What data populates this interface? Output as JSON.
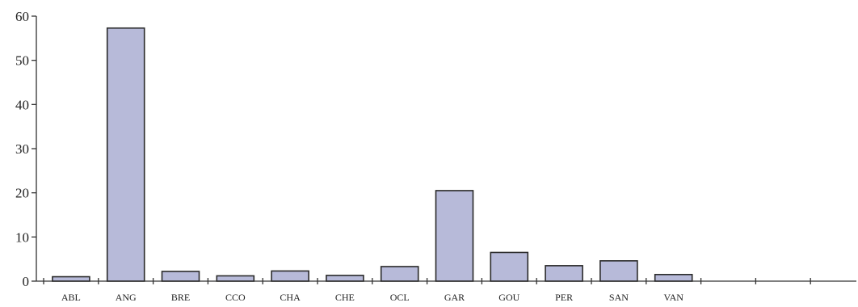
{
  "chart_data": {
    "type": "bar",
    "title": "",
    "xlabel": "",
    "ylabel": "",
    "categories": [
      "ABL",
      "ANG",
      "BRE",
      "CCO",
      "CHA",
      "CHE",
      "OCL",
      "GAR",
      "GOU",
      "PER",
      "SAN",
      "VAN"
    ],
    "values": [
      1,
      57.3,
      2.2,
      1.2,
      2.3,
      1.3,
      3.3,
      20.5,
      6.5,
      3.5,
      4.6,
      1.5
    ],
    "ylim": [
      0,
      60
    ],
    "yticks": [
      0,
      10,
      20,
      30,
      40,
      50,
      60
    ],
    "ytick_labels": [
      "0",
      "10",
      "20",
      "30",
      "40",
      "50",
      "60"
    ],
    "empty_slots_after": 3,
    "grid": false,
    "legend": "none",
    "colors": {
      "bar_fill": "#b7bad9",
      "bar_stroke": "#2a2a2a",
      "axis": "#333333"
    }
  }
}
